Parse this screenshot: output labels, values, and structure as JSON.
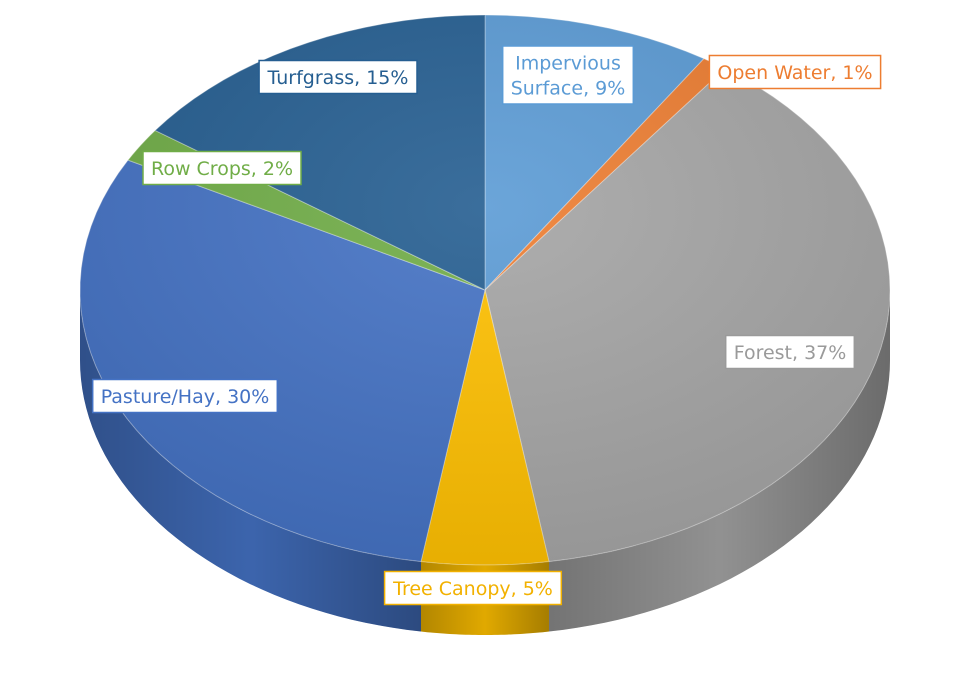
{
  "chart_data": {
    "type": "pie",
    "style": "3d-tilted",
    "title": "",
    "slices": [
      {
        "name": "Impervious Surface",
        "value": 9,
        "label": [
          "Impervious",
          "Surface, 9%"
        ],
        "color": "#5b9bd5",
        "label_color": "#5b9bd5"
      },
      {
        "name": "Open Water",
        "value": 1,
        "label": [
          "Open Water, 1%"
        ],
        "color": "#ed7d31",
        "label_color": "#ed7d31"
      },
      {
        "name": "Forest",
        "value": 37,
        "label": [
          "Forest, 37%"
        ],
        "color": "#a5a5a5",
        "label_color": "#9a9a9a"
      },
      {
        "name": "Tree Canopy",
        "value": 5,
        "label": [
          "Tree Canopy, 5%"
        ],
        "color": "#ffc000",
        "label_color": "#f2b100"
      },
      {
        "name": "Pasture/Hay",
        "value": 30,
        "label": [
          "Pasture/Hay, 30%"
        ],
        "color": "#4472c4",
        "label_color": "#4472c4"
      },
      {
        "name": "Row Crops",
        "value": 2,
        "label": [
          "Row Crops, 2%"
        ],
        "color": "#70ad47",
        "label_color": "#70ad47"
      },
      {
        "name": "Turfgrass",
        "value": 15,
        "label": [
          "Turfgrass, 15%"
        ],
        "color": "#255e91",
        "label_color": "#255e91"
      }
    ],
    "legend": "none",
    "data_labels": "category-and-percent"
  }
}
